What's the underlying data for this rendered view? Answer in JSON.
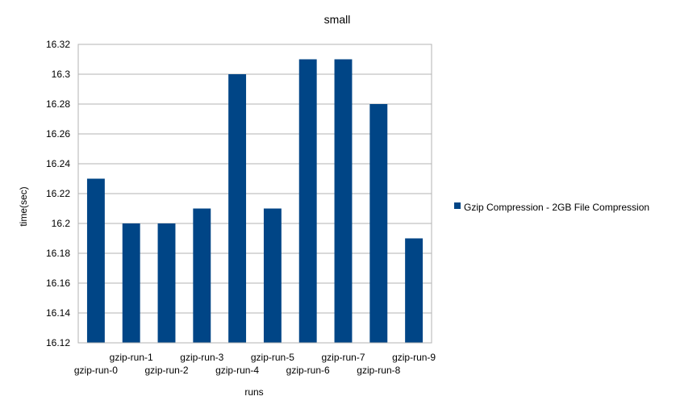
{
  "chart_data": {
    "type": "bar",
    "title": "small",
    "xlabel": "runs",
    "ylabel": "time(sec)",
    "categories": [
      "gzip-run-0",
      "gzip-run-1",
      "gzip-run-2",
      "gzip-run-3",
      "gzip-run-4",
      "gzip-run-5",
      "gzip-run-6",
      "gzip-run-7",
      "gzip-run-8",
      "gzip-run-9"
    ],
    "series": [
      {
        "name": "Gzip Compression - 2GB File Compression",
        "color": "#004586",
        "values": [
          16.23,
          16.2,
          16.2,
          16.21,
          16.3,
          16.21,
          16.31,
          16.31,
          16.28,
          16.19
        ]
      }
    ],
    "ylim": [
      16.12,
      16.32
    ],
    "yticks": [
      "16.12",
      "16.14",
      "16.16",
      "16.18",
      "16.2",
      "16.22",
      "16.24",
      "16.26",
      "16.28",
      "16.3",
      "16.32"
    ],
    "grid": true,
    "legend_position": "right"
  }
}
